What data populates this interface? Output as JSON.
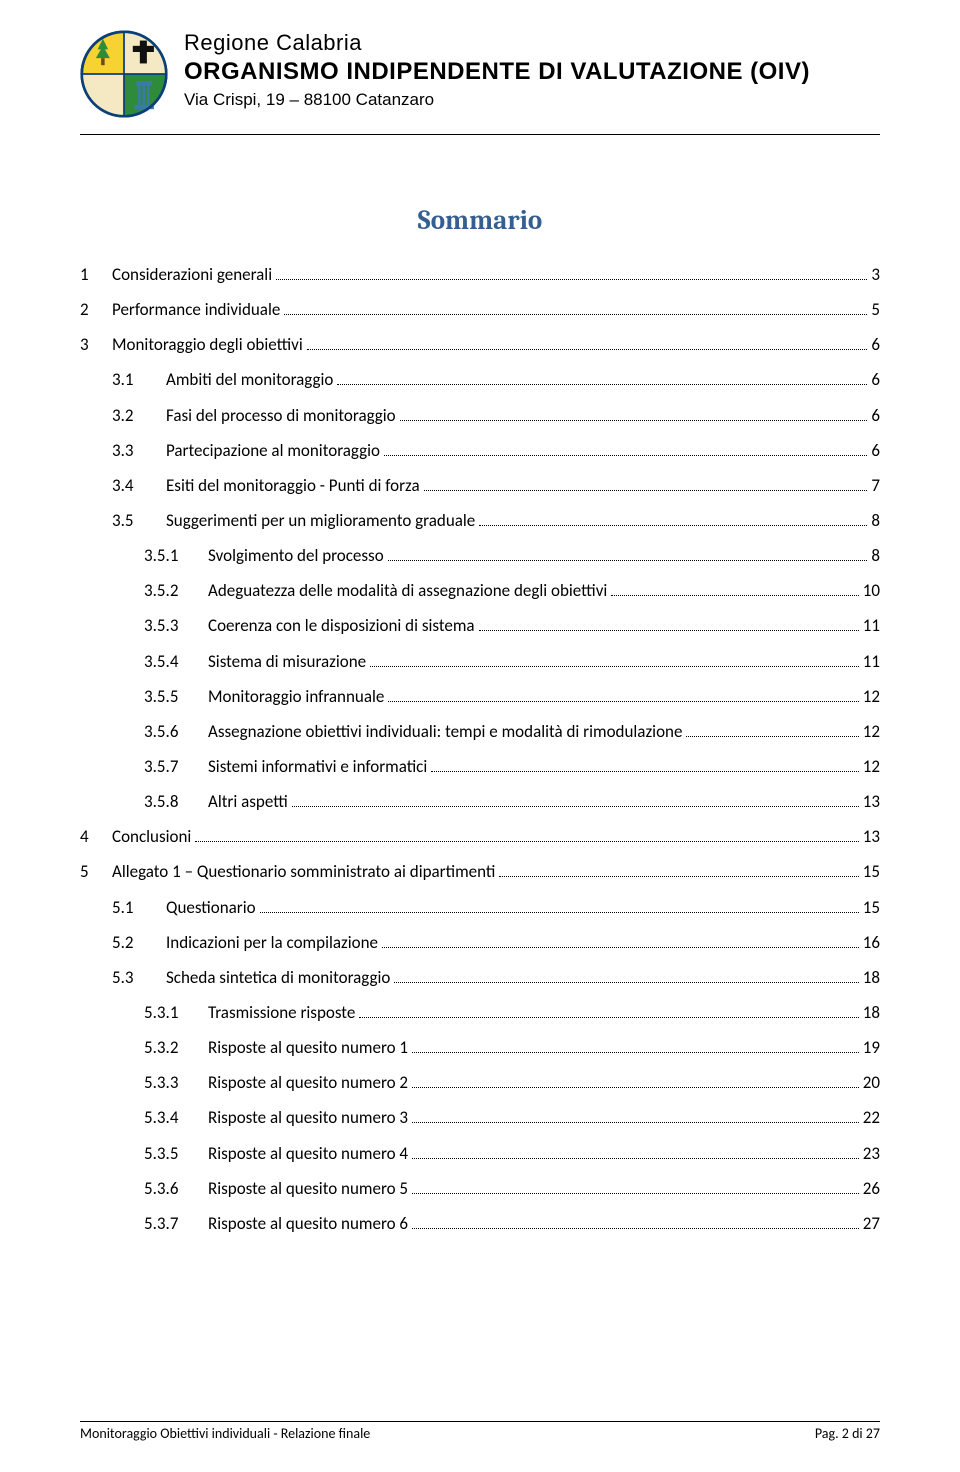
{
  "header": {
    "line1": "Regione Calabria",
    "line2": "ORGANISMO INDIPENDENTE DI VALUTAZIONE (OIV)",
    "line3": "Via Crispi, 19 – 88100 Catanzaro"
  },
  "title": "Sommario",
  "colors": {
    "title": "#365f91",
    "text": "#000000",
    "logo_yellow": "#f6d233",
    "logo_green": "#2e8b3a",
    "logo_blue": "#3b7aa8",
    "logo_cream": "#f5e9c3",
    "logo_border": "#0a3f7a"
  },
  "toc": [
    {
      "level": 0,
      "num": "1",
      "label": "Considerazioni generali",
      "page": "3"
    },
    {
      "level": 0,
      "num": "2",
      "label": "Performance individuale",
      "page": "5"
    },
    {
      "level": 0,
      "num": "3",
      "label": "Monitoraggio degli obiettivi",
      "page": "6"
    },
    {
      "level": 1,
      "num": "3.1",
      "label": "Ambiti del monitoraggio",
      "page": "6"
    },
    {
      "level": 1,
      "num": "3.2",
      "label": "Fasi del processo di monitoraggio",
      "page": "6"
    },
    {
      "level": 1,
      "num": "3.3",
      "label": "Partecipazione al monitoraggio",
      "page": "6"
    },
    {
      "level": 1,
      "num": "3.4",
      "label": "Esiti del monitoraggio -  Punti di forza",
      "page": "7"
    },
    {
      "level": 1,
      "num": "3.5",
      "label": "Suggerimenti per un miglioramento graduale",
      "page": "8"
    },
    {
      "level": 2,
      "num": "3.5.1",
      "label": "Svolgimento del processo",
      "page": "8"
    },
    {
      "level": 2,
      "num": "3.5.2",
      "label": "Adeguatezza delle modalità di assegnazione degli obiettivi",
      "page": "10"
    },
    {
      "level": 2,
      "num": "3.5.3",
      "label": "Coerenza con le disposizioni di sistema",
      "page": "11"
    },
    {
      "level": 2,
      "num": "3.5.4",
      "label": "Sistema di misurazione",
      "page": "11"
    },
    {
      "level": 2,
      "num": "3.5.5",
      "label": "Monitoraggio infrannuale",
      "page": "12"
    },
    {
      "level": 2,
      "num": "3.5.6",
      "label": "Assegnazione obiettivi individuali: tempi e modalità di rimodulazione",
      "page": "12"
    },
    {
      "level": 2,
      "num": "3.5.7",
      "label": "Sistemi informativi e informatici",
      "page": "12"
    },
    {
      "level": 2,
      "num": "3.5.8",
      "label": "Altri aspetti",
      "page": "13"
    },
    {
      "level": 0,
      "num": "4",
      "label": "Conclusioni",
      "page": "13"
    },
    {
      "level": 0,
      "num": "5",
      "label": "Allegato 1 – Questionario somministrato ai dipartimenti",
      "page": "15"
    },
    {
      "level": 1,
      "num": "5.1",
      "label": "Questionario",
      "page": "15"
    },
    {
      "level": 1,
      "num": "5.2",
      "label": "Indicazioni per la compilazione",
      "page": "16"
    },
    {
      "level": 1,
      "num": "5.3",
      "label": "Scheda sintetica di monitoraggio",
      "page": "18"
    },
    {
      "level": 2,
      "num": "5.3.1",
      "label": "Trasmissione risposte",
      "page": "18"
    },
    {
      "level": 2,
      "num": "5.3.2",
      "label": "Risposte al quesito numero 1",
      "page": "19"
    },
    {
      "level": 2,
      "num": "5.3.3",
      "label": "Risposte al quesito numero 2",
      "page": "20"
    },
    {
      "level": 2,
      "num": "5.3.4",
      "label": "Risposte al quesito numero 3",
      "page": "22"
    },
    {
      "level": 2,
      "num": "5.3.5",
      "label": "Risposte al quesito numero 4",
      "page": "23"
    },
    {
      "level": 2,
      "num": "5.3.6",
      "label": "Risposte al quesito numero 5",
      "page": "26"
    },
    {
      "level": 2,
      "num": "5.3.7",
      "label": "Risposte al quesito numero 6",
      "page": "27"
    }
  ],
  "footer": {
    "left": "Monitoraggio Obiettivi individuali - Relazione finale",
    "right": "Pag. 2 di 27"
  }
}
